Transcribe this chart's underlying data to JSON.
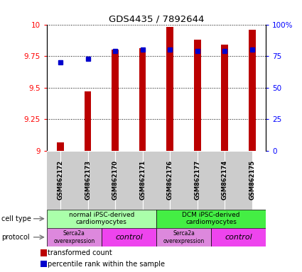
{
  "title": "GDS4435 / 7892644",
  "samples": [
    "GSM862172",
    "GSM862173",
    "GSM862170",
    "GSM862171",
    "GSM862176",
    "GSM862177",
    "GSM862174",
    "GSM862175"
  ],
  "transformed_counts": [
    9.07,
    9.47,
    9.8,
    9.81,
    9.98,
    9.88,
    9.84,
    9.96
  ],
  "percentile_ranks": [
    70,
    73,
    79,
    80,
    80,
    79,
    79,
    80
  ],
  "ylim": [
    9.0,
    10.0
  ],
  "yticks": [
    9.0,
    9.25,
    9.5,
    9.75,
    10.0
  ],
  "ytick_labels": [
    "9",
    "9.25",
    "9.5",
    "9.75",
    "10"
  ],
  "right_yticks_pct": [
    0,
    25,
    50,
    75,
    100
  ],
  "right_ytick_labels": [
    "0",
    "25",
    "50",
    "75",
    "100%"
  ],
  "bar_color": "#bb0000",
  "dot_color": "#0000cc",
  "bar_width": 0.25,
  "cell_type_groups": [
    {
      "label": "normal iPSC-derived\ncardiomyocytes",
      "start": 0,
      "end": 4,
      "color": "#aaffaa"
    },
    {
      "label": "DCM iPSC-derived\ncardiomyocytes",
      "start": 4,
      "end": 8,
      "color": "#44ee44"
    }
  ],
  "protocol_groups": [
    {
      "label": "Serca2a\noverexpression",
      "start": 0,
      "end": 2,
      "color": "#dd88dd",
      "fontsize": 5.5,
      "italic": false
    },
    {
      "label": "control",
      "start": 2,
      "end": 4,
      "color": "#ee44ee",
      "fontsize": 8,
      "italic": true
    },
    {
      "label": "Serca2a\noverexpression",
      "start": 4,
      "end": 6,
      "color": "#dd88dd",
      "fontsize": 5.5,
      "italic": false
    },
    {
      "label": "control",
      "start": 6,
      "end": 8,
      "color": "#ee44ee",
      "fontsize": 8,
      "italic": true
    }
  ],
  "gsm_label_bg": "#cccccc",
  "legend_red_label": "transformed count",
  "legend_blue_label": "percentile rank within the sample"
}
